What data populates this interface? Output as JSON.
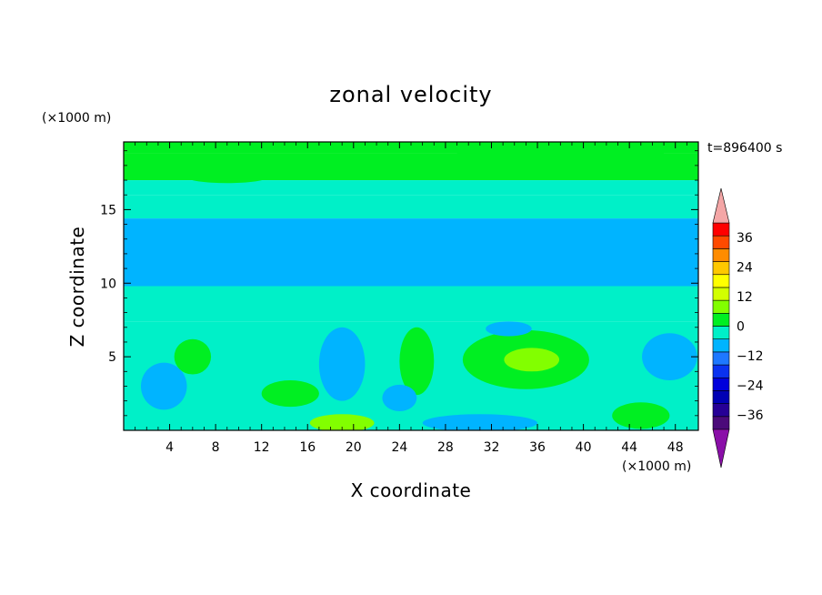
{
  "chart_data": {
    "type": "heatmap",
    "title": "zonal velocity",
    "xlabel": "X coordinate",
    "ylabel": "Z coordinate",
    "x_unit": "(×1000 m)",
    "y_unit": "(×1000 m)",
    "time_label": "t=896400 s",
    "xlim": [
      0,
      50
    ],
    "ylim": [
      0,
      19.6
    ],
    "x_ticks": [
      4,
      8,
      12,
      16,
      20,
      24,
      28,
      32,
      36,
      40,
      44,
      48
    ],
    "y_ticks": [
      5,
      10,
      15
    ],
    "colorbar": {
      "ticks": [
        36,
        24,
        12,
        0,
        -12,
        -24,
        -36
      ],
      "levels": [
        -42,
        -36,
        -30,
        -24,
        -18,
        -12,
        -6,
        0,
        6,
        12,
        18,
        24,
        30,
        36,
        42
      ],
      "colors": [
        "#4b0a7a",
        "#260096",
        "#0000b4",
        "#0000dc",
        "#0a32f0",
        "#1e78ff",
        "#00b4ff",
        "#00f0c8",
        "#00ef22",
        "#82ff00",
        "#d2ff00",
        "#ffff00",
        "#ffc800",
        "#ff8c00",
        "#ff4a00",
        "#ff0000"
      ],
      "over_color": "#f4a6a6",
      "under_color": "#8a0fa8",
      "extend": "both"
    },
    "bands": [
      {
        "z": [
          18.8,
          19.6
        ],
        "value": 9
      },
      {
        "z": [
          17.0,
          18.8
        ],
        "value": 6
      },
      {
        "z": [
          16.0,
          17.0
        ],
        "value": 4
      },
      {
        "z": [
          14.4,
          16.0
        ],
        "value": 2
      },
      {
        "z": [
          9.8,
          14.4
        ],
        "value": -3
      },
      {
        "z": [
          7.4,
          9.8
        ],
        "value": 2
      },
      {
        "z": [
          0,
          7.4
        ],
        "value": 1
      }
    ],
    "features": [
      {
        "x": 35,
        "z": 4.8,
        "rx": 5.5,
        "rz": 2.0,
        "value": 8
      },
      {
        "x": 35.5,
        "z": 4.8,
        "rx": 2.4,
        "rz": 0.8,
        "value": 14
      },
      {
        "x": 19,
        "z": 4.5,
        "rx": 2.0,
        "rz": 2.5,
        "value": -4
      },
      {
        "x": 3.5,
        "z": 3.0,
        "rx": 2.0,
        "rz": 1.6,
        "value": -3
      },
      {
        "x": 47.5,
        "z": 5.0,
        "rx": 2.4,
        "rz": 1.6,
        "value": -3
      },
      {
        "x": 25.5,
        "z": 4.7,
        "rx": 1.5,
        "rz": 2.3,
        "value": 7
      },
      {
        "x": 6.0,
        "z": 5.0,
        "rx": 1.6,
        "rz": 1.2,
        "value": 7
      },
      {
        "x": 14.5,
        "z": 2.5,
        "rx": 2.5,
        "rz": 0.9,
        "value": 7
      },
      {
        "x": 19.0,
        "z": 0.5,
        "rx": 2.8,
        "rz": 0.6,
        "value": 13
      },
      {
        "x": 31.0,
        "z": 0.5,
        "rx": 5.0,
        "rz": 0.6,
        "value": -4
      },
      {
        "x": 24.0,
        "z": 2.2,
        "rx": 1.5,
        "rz": 0.9,
        "value": -3
      },
      {
        "x": 45.0,
        "z": 1.0,
        "rx": 2.5,
        "rz": 0.9,
        "value": 7
      },
      {
        "x": 9.0,
        "z": 17.2,
        "rx": 3.5,
        "rz": 0.4,
        "value": 10
      },
      {
        "x": 38.0,
        "z": 18.8,
        "rx": 9.0,
        "rz": 0.7,
        "value": 11
      },
      {
        "x": 33.5,
        "z": 6.9,
        "rx": 2.0,
        "rz": 0.5,
        "value": -4
      }
    ]
  }
}
